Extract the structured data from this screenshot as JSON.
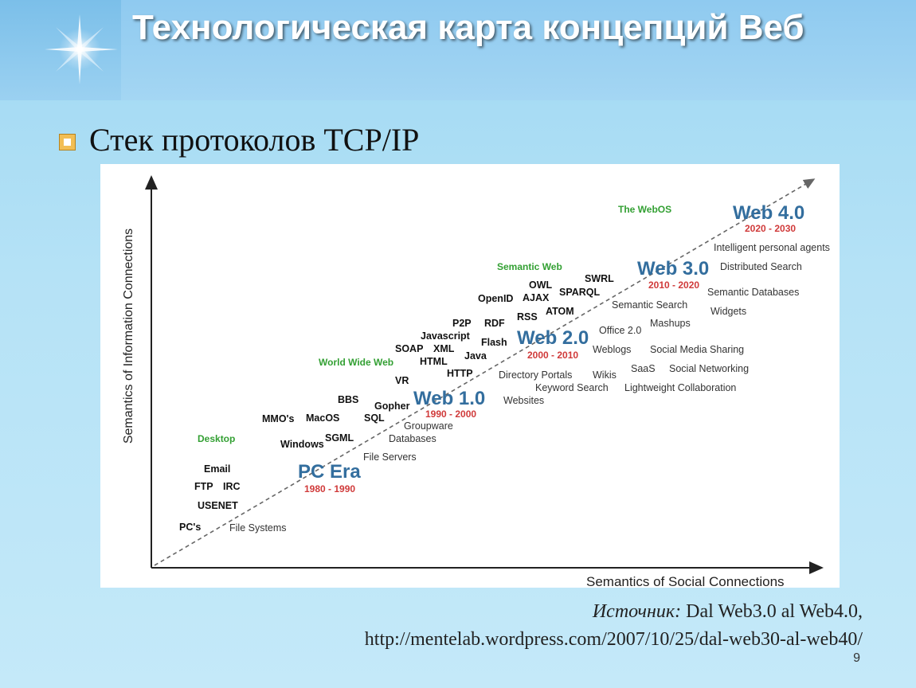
{
  "slide": {
    "title": "Технологическая карта концепций Веб",
    "bullet": "Стек протоколов TCP/IP",
    "source_label": "Источник:",
    "source_text": " Dal Web3.0 al Web4.0,",
    "source_url": "http://mentelab.wordpress.com/2007/10/25/dal-web30-al-web40/",
    "page_number": "9"
  },
  "diagram": {
    "y_axis_label": "Semantics of Information Connections",
    "x_axis_label": "Semantics of Social Connections",
    "eras": [
      {
        "name": "PC Era",
        "years": "1980 - 1990"
      },
      {
        "name": "Web 1.0",
        "years": "1990 - 2000"
      },
      {
        "name": "Web 2.0",
        "years": "2000 - 2010"
      },
      {
        "name": "Web 3.0",
        "years": "2010 - 2020"
      },
      {
        "name": "Web 4.0",
        "years": "2020 - 2030"
      }
    ],
    "categories": [
      "Desktop",
      "World Wide Web",
      "Semantic Web",
      "The WebOS"
    ],
    "technologies": [
      "PC's",
      "USENET",
      "FTP",
      "IRC",
      "Email",
      "Windows",
      "SGML",
      "MMO's",
      "MacOS",
      "SQL",
      "BBS",
      "Gopher",
      "VR",
      "HTTP",
      "HTML",
      "Java",
      "SOAP",
      "XML",
      "Javascript",
      "Flash",
      "P2P",
      "RDF",
      "RSS",
      "ATOM",
      "OpenID",
      "AJAX",
      "OWL",
      "SPARQL",
      "SWRL"
    ],
    "applications": [
      "File Systems",
      "File Servers",
      "Databases",
      "Groupware",
      "Websites",
      "Keyword Search",
      "Directory Portals",
      "Wikis",
      "Lightweight Collaboration",
      "SaaS",
      "Social Networking",
      "Weblogs",
      "Social Media Sharing",
      "Office 2.0",
      "Mashups",
      "Semantic Search",
      "Widgets",
      "Semantic Databases",
      "Distributed Search",
      "Intelligent personal agents"
    ],
    "colors": {
      "era": "#336e9e",
      "years": "#d03a3a",
      "category": "#33a033",
      "tech": "#111111",
      "app": "#333333",
      "arrow": "#555555"
    }
  }
}
